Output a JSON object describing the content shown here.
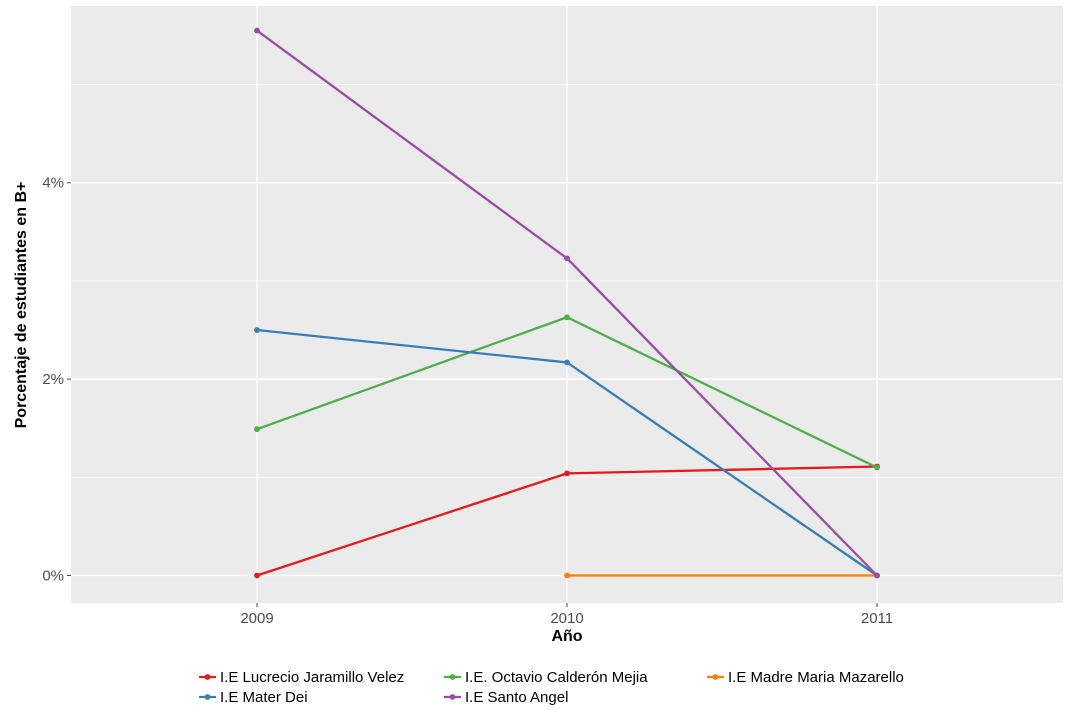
{
  "chart_data": {
    "type": "line",
    "title": "",
    "xlabel": "Año",
    "ylabel": "Porcentaje de estudiantes en B+",
    "x": [
      "2009",
      "2010",
      "2011"
    ],
    "xlim": [
      2008.4,
      2011.6
    ],
    "ylim": [
      -0.28,
      5.8
    ],
    "y_ticks": [
      {
        "value": 0,
        "label": "0%"
      },
      {
        "value": 2,
        "label": "2%"
      },
      {
        "value": 4,
        "label": "4%"
      }
    ],
    "grid": true,
    "legend_position": "bottom",
    "series": [
      {
        "name": "I.E Lucrecio Jaramillo Velez",
        "color": "#e41a1c",
        "values": [
          0,
          1.04,
          1.11
        ]
      },
      {
        "name": "I.E. Octavio Calderón Mejia",
        "color": "#4daf4a",
        "values": [
          1.49,
          2.63,
          1.1
        ]
      },
      {
        "name": "I.E Madre Maria Mazarello",
        "color": "#ff7f00",
        "values": [
          null,
          0,
          0
        ]
      },
      {
        "name": "I.E Mater Dei",
        "color": "#377eb8",
        "values": [
          2.5,
          2.17,
          0
        ]
      },
      {
        "name": "I.E Santo Angel",
        "color": "#984ea3",
        "values": [
          5.55,
          3.23,
          0
        ]
      }
    ]
  }
}
